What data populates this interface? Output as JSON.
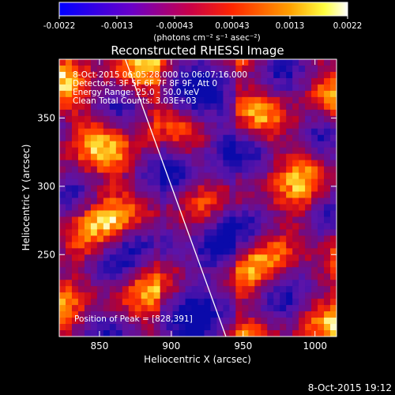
{
  "colorbar": {
    "ticks": [
      "-0.0022",
      "-0.0013",
      "-0.00043",
      "0.00043",
      "0.0013",
      "0.0022"
    ],
    "unit_label": "(photons cm⁻² s⁻¹ asec⁻²)",
    "range": [
      -0.0022,
      0.0022
    ]
  },
  "chart_data": {
    "type": "heatmap",
    "title": "Reconstructed RHESSI Image",
    "xlabel": "Heliocentric X (arcsec)",
    "ylabel": "Heliocentric Y (arcsec)",
    "xlim": [
      822,
      1015
    ],
    "ylim": [
      190,
      393
    ],
    "x_ticks": [
      "850",
      "900",
      "950",
      "1000"
    ],
    "x_tick_values": [
      850,
      900,
      950,
      1000
    ],
    "y_ticks": [
      "250",
      "300",
      "350"
    ],
    "y_tick_values": [
      250,
      300,
      350
    ],
    "annotations": [
      "8-Oct-2015 06:05:28.000 to 06:07:16.000",
      "Detectors: 3F 5F 6F 7F 8F 9F, Att 0",
      "Energy Range: 25.0 - 50.0 keV",
      "Clean    Total Counts: 3.03E+03"
    ],
    "peak_label": "Position of Peak = [828,391]",
    "limb_line": {
      "x": [
        868,
        938
      ],
      "y": [
        393,
        190
      ]
    },
    "grid": false,
    "colormap": "blue-purple-red-orange-yellow-white"
  },
  "footer": {
    "timestamp": "8-Oct-2015 19:12"
  }
}
